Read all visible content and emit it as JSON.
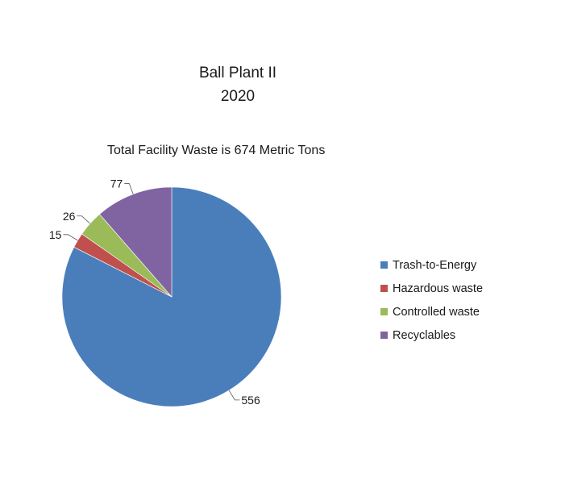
{
  "chart_data": {
    "type": "pie",
    "title": "Ball Plant II",
    "title_line2": "2020",
    "subtitle": "Total Facility Waste is 674 Metric Tons",
    "slices": [
      {
        "label": "Trash-to-Energy",
        "value": 556,
        "color": "#4a7ebb"
      },
      {
        "label": "Hazardous waste",
        "value": 15,
        "color": "#c0504d"
      },
      {
        "label": "Controlled waste",
        "value": 26,
        "color": "#9bbb59"
      },
      {
        "label": "Recyclables",
        "value": 77,
        "color": "#8064a2"
      }
    ],
    "data_labels": [
      "556",
      "15",
      "26",
      "77"
    ],
    "start_angle": "12 o'clock",
    "direction": "clockwise",
    "legend_position": "right",
    "grid": false
  }
}
